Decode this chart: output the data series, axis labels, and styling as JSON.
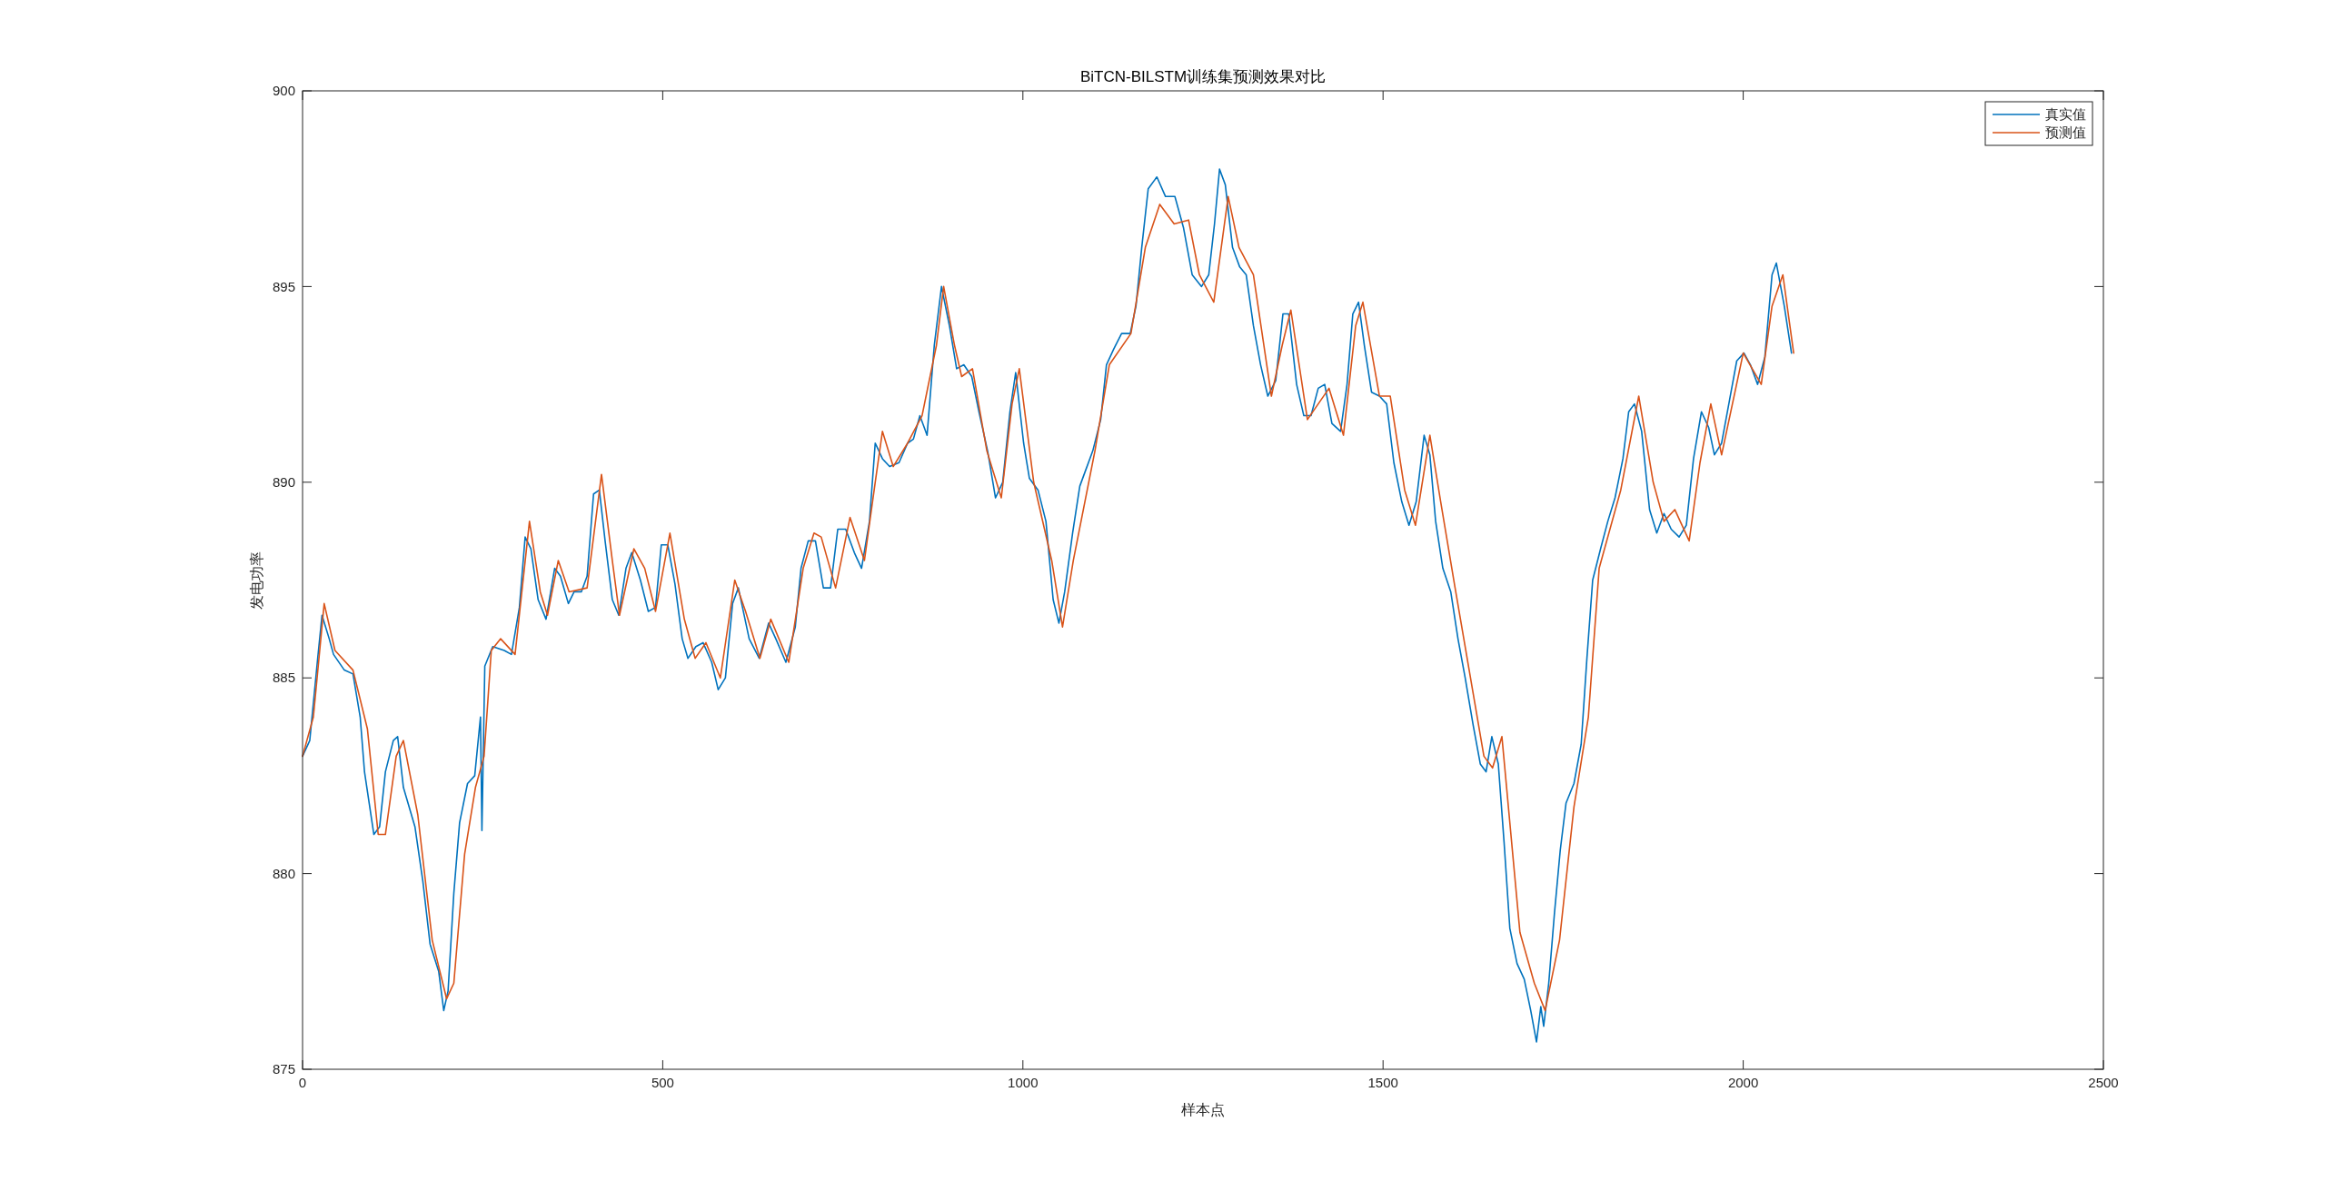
{
  "chart_data": {
    "type": "line",
    "title": "BiTCN-BILSTM训练集预测效果对比",
    "xlabel": "样本点",
    "ylabel": "发电功率",
    "xlim": [
      0,
      2500
    ],
    "xticks": [
      0,
      500,
      1000,
      1500,
      2000,
      2500
    ],
    "ylim": [
      875,
      900
    ],
    "yticks": [
      875,
      880,
      885,
      890,
      895,
      900
    ],
    "grid": false,
    "legend": "top right",
    "marker": "none",
    "line_style": "solid",
    "series": [
      {
        "name": "真实值",
        "color": "#0072bd",
        "x": [
          0,
          10,
          21,
          27,
          37,
          43,
          58,
          70,
          80,
          86,
          99,
          107,
          115,
          126,
          132,
          140,
          156,
          167,
          177,
          189,
          196,
          202,
          210,
          218,
          229,
          239,
          247,
          249,
          253,
          264,
          280,
          290,
          301,
          309,
          317,
          327,
          338,
          350,
          358,
          369,
          377,
          387,
          395,
          404,
          412,
          420,
          430,
          439,
          449,
          457,
          469,
          480,
          490,
          498,
          507,
          517,
          527,
          535,
          546,
          556,
          568,
          577,
          587,
          597,
          605,
          620,
          634,
          647,
          657,
          671,
          684,
          692,
          702,
          712,
          723,
          733,
          743,
          754,
          766,
          776,
          787,
          795,
          805,
          815,
          828,
          840,
          848,
          857,
          867,
          877,
          887,
          898,
          908,
          918,
          929,
          939,
          951,
          962,
          972,
          982,
          990,
          1001,
          1009,
          1021,
          1032,
          1042,
          1050,
          1058,
          1069,
          1079,
          1087,
          1097,
          1108,
          1116,
          1126,
          1137,
          1149,
          1157,
          1165,
          1174,
          1186,
          1198,
          1211,
          1223,
          1235,
          1248,
          1258,
          1266,
          1273,
          1281,
          1291,
          1301,
          1310,
          1320,
          1330,
          1340,
          1351,
          1361,
          1369,
          1380,
          1390,
          1400,
          1410,
          1419,
          1429,
          1441,
          1450,
          1458,
          1466,
          1474,
          1484,
          1495,
          1505,
          1515,
          1526,
          1536,
          1546,
          1557,
          1565,
          1573,
          1583,
          1594,
          1604,
          1614,
          1625,
          1635,
          1643,
          1651,
          1660,
          1668,
          1676,
          1686,
          1696,
          1705,
          1713,
          1719,
          1723,
          1730,
          1738,
          1746,
          1754,
          1765,
          1775,
          1783,
          1791,
          1802,
          1812,
          1822,
          1833,
          1841,
          1849,
          1859,
          1870,
          1880,
          1890,
          1900,
          1911,
          1921,
          1931,
          1942,
          1952,
          1960,
          1970,
          1981,
          1991,
          2001,
          2010,
          2020,
          2030,
          2040,
          2046,
          2057,
          2067
        ],
        "values": [
          883.0,
          883.4,
          885.5,
          886.6,
          886.0,
          885.6,
          885.2,
          885.1,
          884.0,
          882.6,
          881.0,
          881.2,
          882.6,
          883.4,
          883.5,
          882.2,
          881.2,
          879.8,
          878.2,
          877.5,
          876.5,
          877.0,
          879.5,
          881.3,
          882.3,
          882.5,
          884.0,
          881.1,
          885.3,
          885.8,
          885.7,
          885.6,
          886.8,
          888.6,
          888.3,
          887.0,
          886.5,
          887.8,
          887.6,
          886.9,
          887.2,
          887.2,
          887.6,
          889.7,
          889.8,
          888.5,
          887.0,
          886.6,
          887.8,
          888.2,
          887.5,
          886.7,
          886.8,
          888.4,
          888.4,
          887.4,
          886.0,
          885.5,
          885.8,
          885.9,
          885.4,
          884.7,
          885.0,
          886.9,
          887.3,
          886.0,
          885.5,
          886.4,
          886.0,
          885.4,
          886.3,
          887.8,
          888.5,
          888.5,
          887.3,
          887.3,
          888.8,
          888.8,
          888.2,
          887.8,
          889.0,
          891.0,
          890.6,
          890.4,
          890.5,
          891.0,
          891.1,
          891.7,
          891.2,
          893.5,
          895.0,
          894.0,
          892.9,
          893.0,
          892.7,
          891.8,
          890.8,
          889.6,
          890.0,
          891.8,
          892.8,
          891.0,
          890.1,
          889.8,
          889.0,
          887.0,
          886.4,
          887.2,
          888.7,
          889.9,
          890.3,
          890.8,
          891.6,
          893.0,
          893.4,
          893.8,
          893.8,
          894.5,
          896.0,
          897.5,
          897.8,
          897.3,
          897.3,
          896.5,
          895.3,
          895.0,
          895.3,
          896.6,
          898.0,
          897.6,
          896.0,
          895.5,
          895.3,
          894.0,
          893.0,
          892.2,
          892.6,
          894.3,
          894.3,
          892.5,
          891.7,
          891.7,
          892.4,
          892.5,
          891.5,
          891.3,
          892.5,
          894.3,
          894.6,
          893.5,
          892.3,
          892.2,
          892.0,
          890.5,
          889.5,
          888.9,
          889.5,
          891.2,
          890.7,
          889.0,
          887.8,
          887.2,
          886.0,
          885.0,
          883.8,
          882.8,
          882.6,
          883.5,
          882.8,
          880.8,
          878.6,
          877.7,
          877.3,
          876.5,
          875.7,
          876.6,
          876.1,
          877.2,
          879.0,
          880.6,
          881.8,
          882.3,
          883.3,
          885.5,
          887.5,
          888.3,
          889.0,
          889.6,
          890.6,
          891.8,
          892.0,
          891.3,
          889.3,
          888.7,
          889.2,
          888.8,
          888.6,
          888.9,
          890.6,
          891.8,
          891.4,
          890.7,
          891.0,
          892.1,
          893.1,
          893.3,
          893.0,
          892.5,
          893.2,
          895.3,
          895.6,
          894.5,
          893.3
        ]
      },
      {
        "name": "预测值",
        "color": "#d95319",
        "x": [
          0,
          15,
          30,
          45,
          70,
          90,
          105,
          115,
          130,
          140,
          160,
          180,
          200,
          210,
          225,
          240,
          252,
          262,
          275,
          295,
          315,
          330,
          340,
          355,
          370,
          395,
          415,
          430,
          440,
          460,
          475,
          490,
          510,
          530,
          545,
          560,
          580,
          600,
          615,
          635,
          650,
          675,
          695,
          710,
          720,
          740,
          760,
          780,
          795,
          805,
          820,
          840,
          860,
          880,
          890,
          905,
          915,
          930,
          950,
          970,
          985,
          995,
          1015,
          1040,
          1055,
          1070,
          1100,
          1120,
          1150,
          1170,
          1190,
          1210,
          1230,
          1245,
          1265,
          1285,
          1300,
          1320,
          1345,
          1360,
          1372,
          1395,
          1425,
          1445,
          1462,
          1472,
          1495,
          1510,
          1530,
          1545,
          1565,
          1580,
          1600,
          1640,
          1652,
          1665,
          1690,
          1710,
          1725,
          1745,
          1765,
          1785,
          1800,
          1830,
          1855,
          1875,
          1890,
          1905,
          1925,
          1940,
          1955,
          1970,
          2000,
          2025,
          2040,
          2055,
          2070
        ],
        "values": [
          883.0,
          884.0,
          886.9,
          885.7,
          885.2,
          883.7,
          881.0,
          881.0,
          883.0,
          883.4,
          881.5,
          878.3,
          876.8,
          877.2,
          880.5,
          882.2,
          883.0,
          885.7,
          886.0,
          885.6,
          889.0,
          887.2,
          886.6,
          888.0,
          887.2,
          887.3,
          890.2,
          888.0,
          886.6,
          888.3,
          887.8,
          886.7,
          888.7,
          886.5,
          885.5,
          885.9,
          885.0,
          887.5,
          886.7,
          885.5,
          886.5,
          885.4,
          887.8,
          888.7,
          888.6,
          887.3,
          889.1,
          888.0,
          890.0,
          891.3,
          890.4,
          891.0,
          891.7,
          893.5,
          895.0,
          893.5,
          892.7,
          892.9,
          890.8,
          889.6,
          892.0,
          892.9,
          890.0,
          888.0,
          886.3,
          888.0,
          890.8,
          893.0,
          893.8,
          896.0,
          897.1,
          896.6,
          896.7,
          895.3,
          894.6,
          897.3,
          896.0,
          895.3,
          892.2,
          893.5,
          894.4,
          891.6,
          892.4,
          891.2,
          894.0,
          894.6,
          892.2,
          892.2,
          889.8,
          888.9,
          891.2,
          889.5,
          887.3,
          883.0,
          882.7,
          883.5,
          878.5,
          877.2,
          876.5,
          878.3,
          881.7,
          884.0,
          887.8,
          889.8,
          892.2,
          890.0,
          889.0,
          889.3,
          888.5,
          890.5,
          892.0,
          890.7,
          893.3,
          892.5,
          894.5,
          895.3,
          893.3
        ]
      }
    ]
  }
}
